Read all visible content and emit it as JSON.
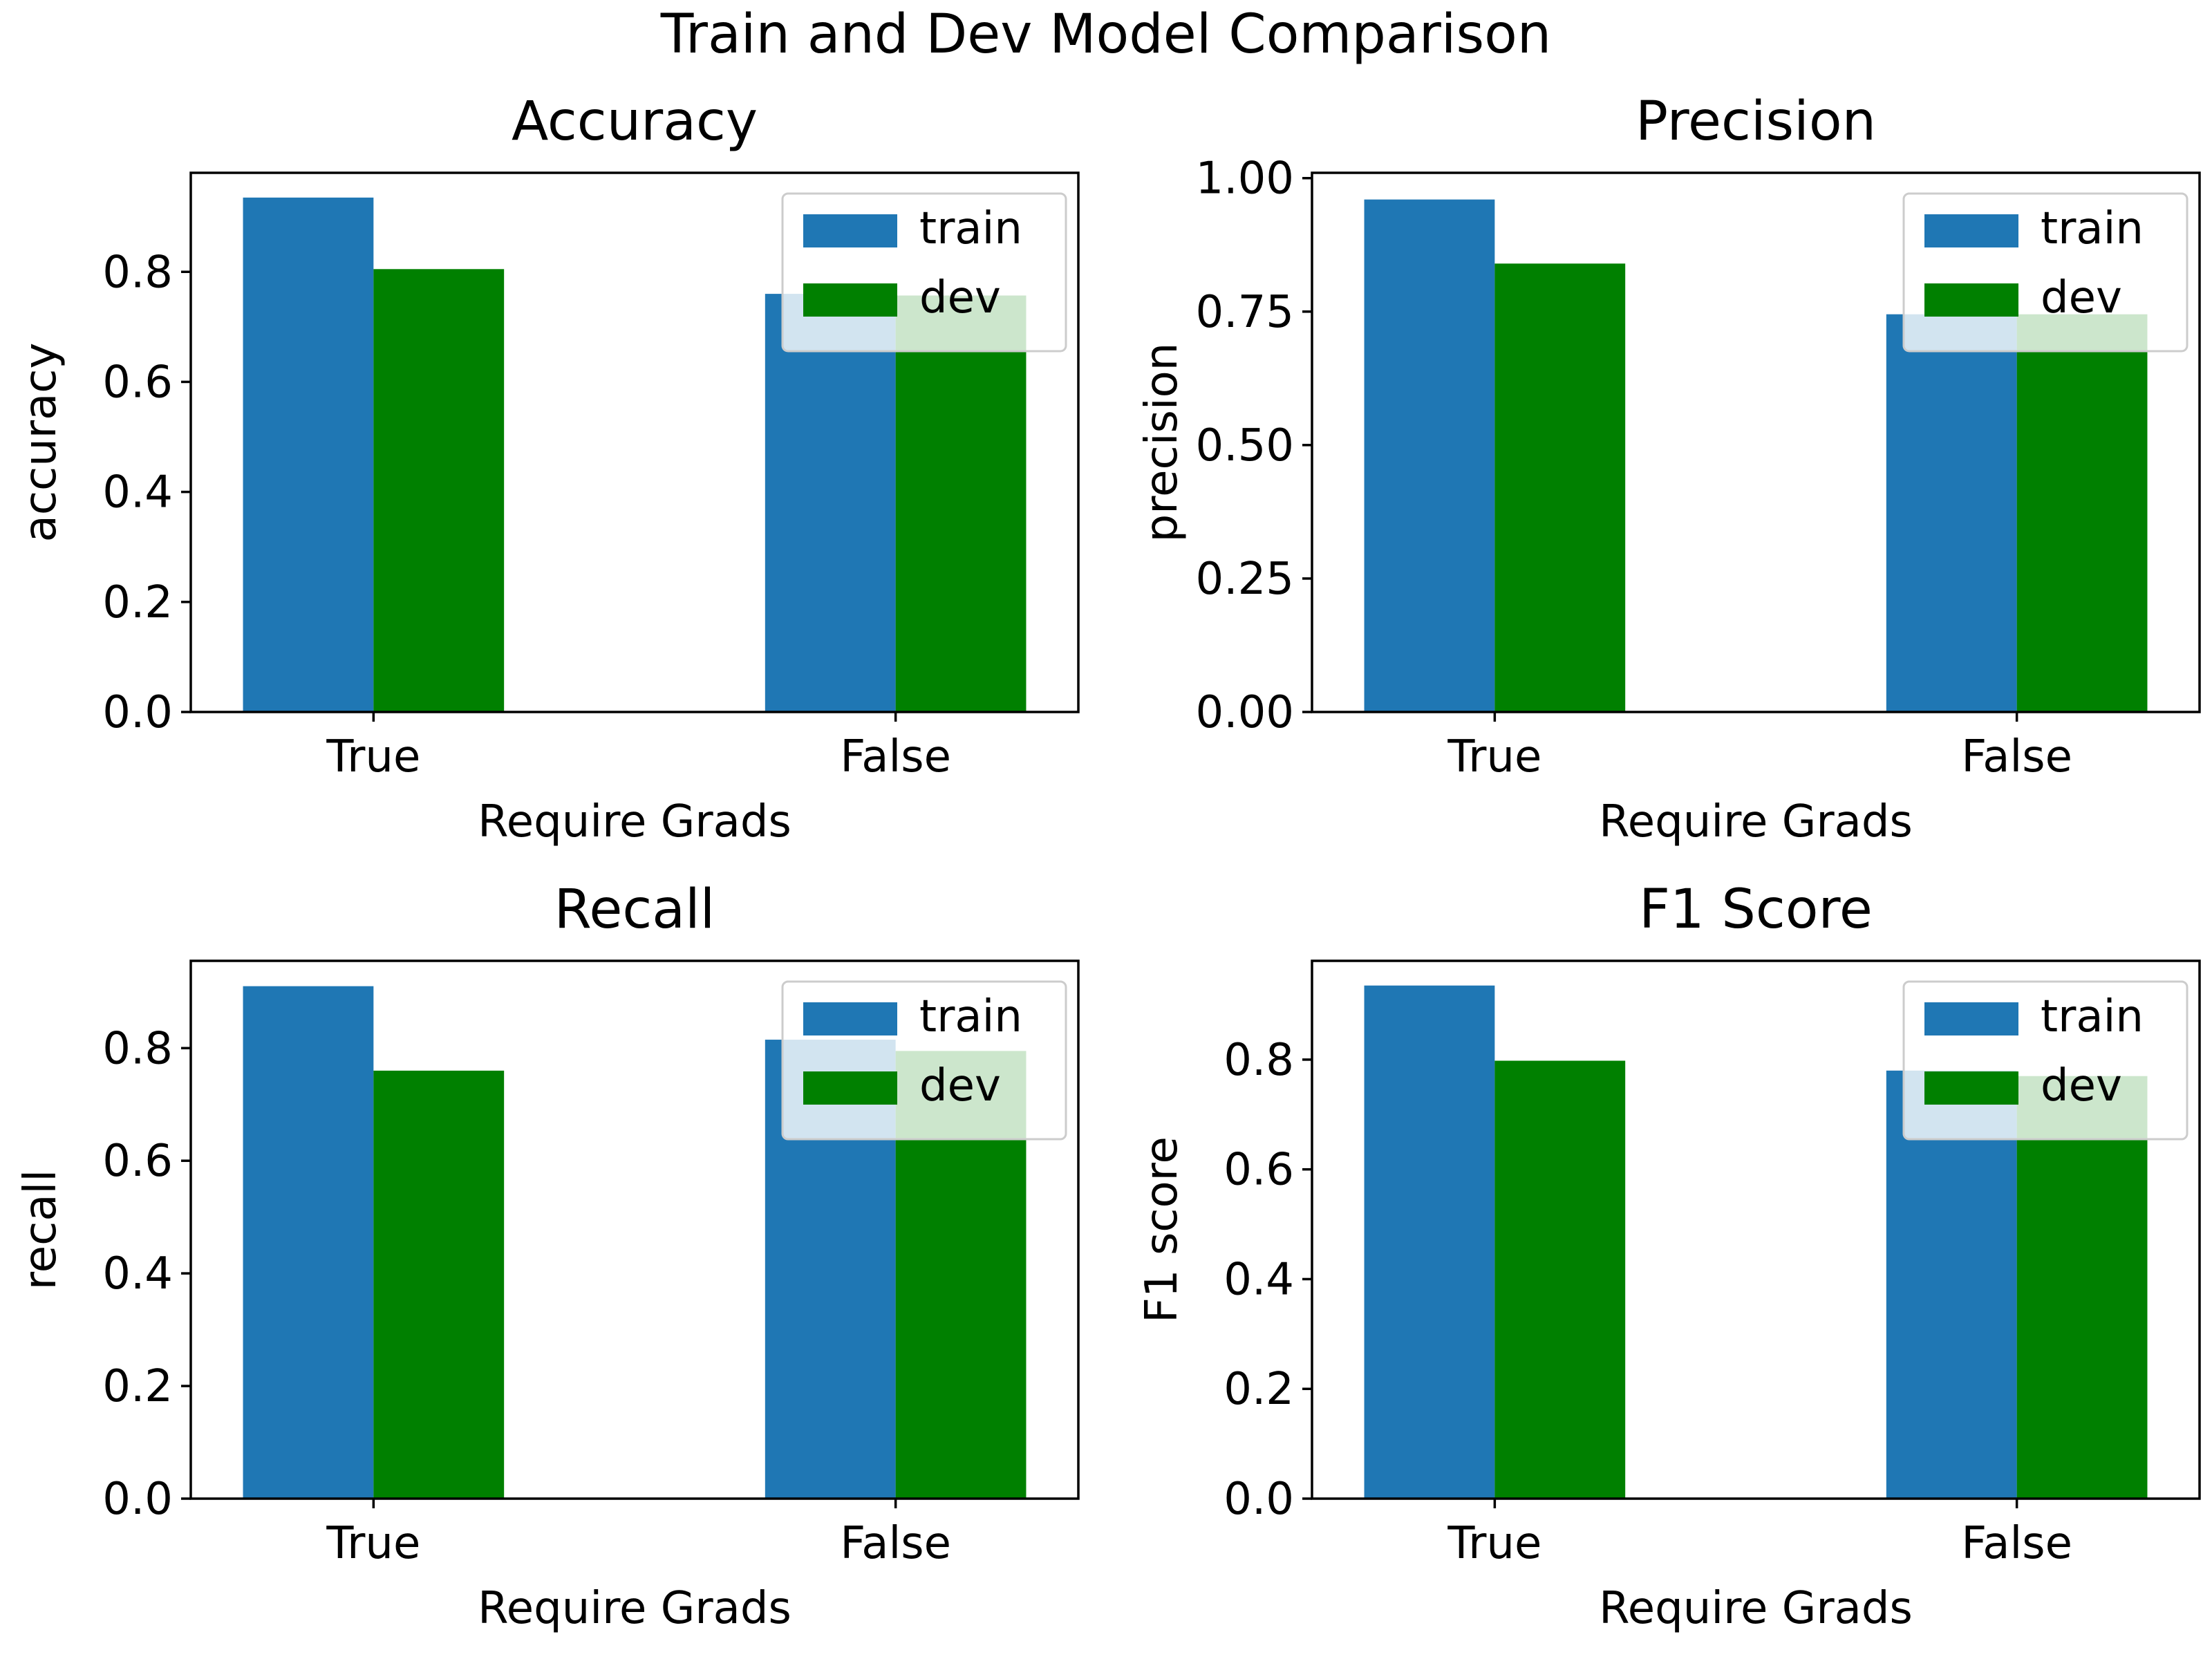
{
  "suptitle": "Train and Dev Model Comparison",
  "colors": {
    "train": "#1f77b4",
    "dev": "#008000"
  },
  "chart_data": [
    {
      "type": "bar",
      "title": "Accuracy",
      "xlabel": "Require Grads",
      "ylabel": "accuracy",
      "categories": [
        "True",
        "False"
      ],
      "series": [
        {
          "name": "train",
          "values": [
            0.935,
            0.76
          ]
        },
        {
          "name": "dev",
          "values": [
            0.805,
            0.757
          ]
        }
      ],
      "ylim": [
        0,
        0.98
      ],
      "yticks": [
        0.0,
        0.2,
        0.4,
        0.6,
        0.8
      ],
      "ytick_labels": [
        "0.0",
        "0.2",
        "0.4",
        "0.6",
        "0.8"
      ],
      "legend": "top-right",
      "grid": false
    },
    {
      "type": "bar",
      "title": "Precision",
      "xlabel": "Require Grads",
      "ylabel": "precision",
      "categories": [
        "True",
        "False"
      ],
      "series": [
        {
          "name": "train",
          "values": [
            0.96,
            0.745
          ]
        },
        {
          "name": "dev",
          "values": [
            0.84,
            0.745
          ]
        }
      ],
      "ylim": [
        0,
        1.01
      ],
      "yticks": [
        0.0,
        0.25,
        0.5,
        0.75,
        1.0
      ],
      "ytick_labels": [
        "0.00",
        "0.25",
        "0.50",
        "0.75",
        "1.00"
      ],
      "legend": "top-right",
      "grid": false
    },
    {
      "type": "bar",
      "title": "Recall",
      "xlabel": "Require Grads",
      "ylabel": "recall",
      "categories": [
        "True",
        "False"
      ],
      "series": [
        {
          "name": "train",
          "values": [
            0.91,
            0.815
          ]
        },
        {
          "name": "dev",
          "values": [
            0.76,
            0.795
          ]
        }
      ],
      "ylim": [
        0,
        0.955
      ],
      "yticks": [
        0.0,
        0.2,
        0.4,
        0.6,
        0.8
      ],
      "ytick_labels": [
        "0.0",
        "0.2",
        "0.4",
        "0.6",
        "0.8"
      ],
      "legend": "top-right",
      "grid": false
    },
    {
      "type": "bar",
      "title": "F1 Score",
      "xlabel": "Require Grads",
      "ylabel": "F1 score",
      "categories": [
        "True",
        "False"
      ],
      "series": [
        {
          "name": "train",
          "values": [
            0.935,
            0.78
          ]
        },
        {
          "name": "dev",
          "values": [
            0.798,
            0.77
          ]
        }
      ],
      "ylim": [
        0,
        0.98
      ],
      "yticks": [
        0.0,
        0.2,
        0.4,
        0.6,
        0.8
      ],
      "ytick_labels": [
        "0.0",
        "0.2",
        "0.4",
        "0.6",
        "0.8"
      ],
      "legend": "top-right",
      "grid": false
    }
  ]
}
